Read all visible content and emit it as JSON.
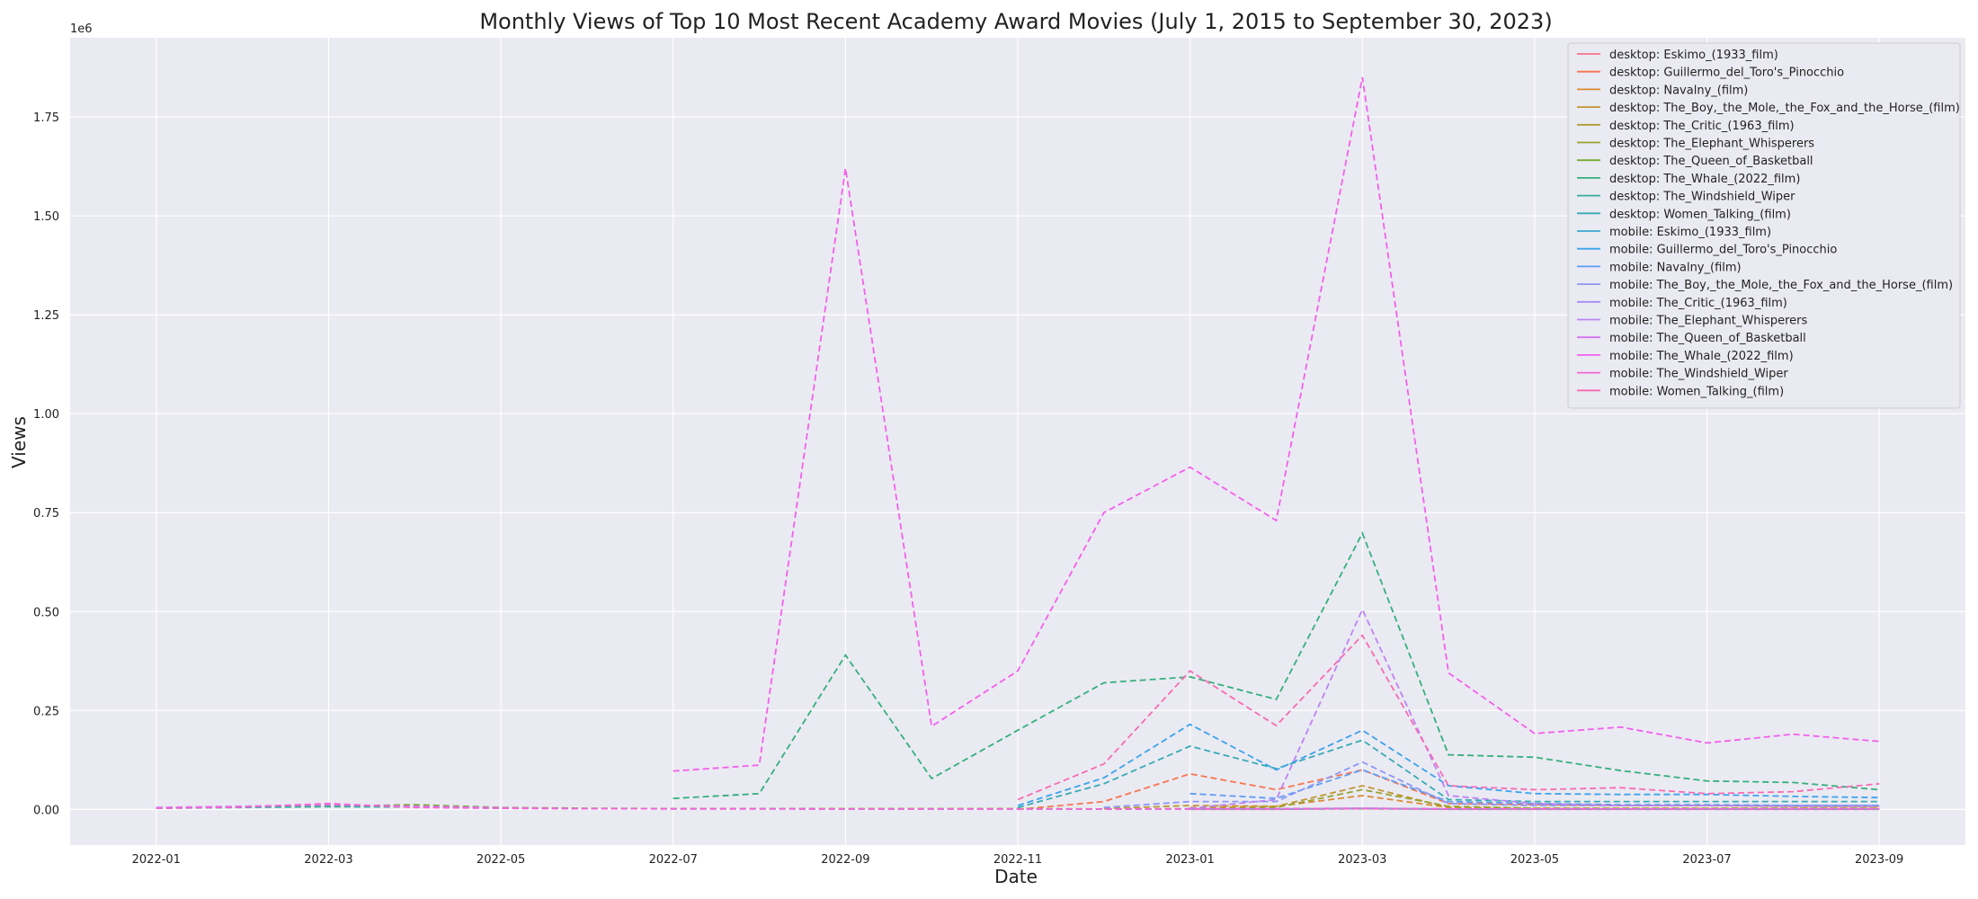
{
  "chart_data": {
    "type": "line",
    "title": "Monthly Views of Top 10 Most Recent Academy Award Movies (July 1, 2015 to September 30, 2023)",
    "xlabel": "Date",
    "ylabel": "Views",
    "y_offset_label": "1e6",
    "ylim": [
      -90000,
      1950000
    ],
    "xlim": [
      "2021-12",
      "2023-10"
    ],
    "x_ticks": [
      "2022-01",
      "2022-03",
      "2022-05",
      "2022-07",
      "2022-09",
      "2022-11",
      "2023-01",
      "2023-03",
      "2023-05",
      "2023-07",
      "2023-09"
    ],
    "y_ticks": [
      "0.00",
      "0.25",
      "0.50",
      "0.75",
      "1.00",
      "1.25",
      "1.50",
      "1.75"
    ],
    "grid": true,
    "legend_position": "top-right",
    "x": [
      "2022-01",
      "2022-02",
      "2022-03",
      "2022-04",
      "2022-05",
      "2022-06",
      "2022-07",
      "2022-08",
      "2022-09",
      "2022-10",
      "2022-11",
      "2022-12",
      "2023-01",
      "2023-02",
      "2023-03",
      "2023-04",
      "2023-05",
      "2023-06",
      "2023-07",
      "2023-08",
      "2023-09"
    ],
    "series": [
      {
        "name": "desktop: Eskimo_(1933_film)",
        "color": "#f77189",
        "values": [
          null,
          null,
          null,
          null,
          null,
          null,
          null,
          null,
          null,
          null,
          null,
          null,
          null,
          null,
          null,
          null,
          null,
          null,
          null,
          null,
          null
        ]
      },
      {
        "name": "desktop: Guillermo_del_Toro's_Pinocchio",
        "color": "#f7754f",
        "values": [
          null,
          null,
          null,
          null,
          null,
          null,
          null,
          null,
          null,
          null,
          0,
          20000,
          90000,
          50000,
          100000,
          15000,
          12000,
          10000,
          10000,
          8000,
          8000
        ]
      },
      {
        "name": "desktop: Navalny_(film)",
        "color": "#dc8932",
        "values": [
          null,
          null,
          null,
          null,
          null,
          null,
          null,
          null,
          null,
          null,
          null,
          null,
          5000,
          8000,
          35000,
          5000,
          3000,
          3000,
          3000,
          3000,
          3000
        ]
      },
      {
        "name": "desktop: The_Boy,_the_Mole,_the_Fox_and_the_Horse_(film)",
        "color": "#c39532",
        "values": [
          null,
          null,
          null,
          null,
          null,
          null,
          null,
          null,
          null,
          null,
          null,
          2000,
          10000,
          8000,
          60000,
          5000,
          3000,
          2000,
          2000,
          2000,
          2000
        ]
      },
      {
        "name": "desktop: The_Critic_(1963_film)",
        "color": "#ae9d31",
        "values": [
          null,
          null,
          null,
          null,
          null,
          null,
          null,
          null,
          null,
          null,
          null,
          null,
          500,
          500,
          1500,
          500,
          500,
          500,
          500,
          500,
          500
        ]
      },
      {
        "name": "desktop: The_Elephant_Whisperers",
        "color": "#97a431",
        "values": [
          null,
          null,
          null,
          null,
          null,
          null,
          null,
          null,
          null,
          null,
          null,
          null,
          1000,
          5000,
          50000,
          8000,
          3000,
          3000,
          3000,
          3000,
          3000
        ]
      },
      {
        "name": "desktop: The_Queen_of_Basketball",
        "color": "#77ab31",
        "values": [
          4000,
          6000,
          8000,
          12000,
          5000,
          3000,
          2000,
          2000,
          2000,
          2000,
          2000,
          1000,
          1000,
          1000,
          2000,
          1000,
          1000,
          1000,
          1000,
          1000,
          1000
        ]
      },
      {
        "name": "desktop: The_Whale_(2022_film)",
        "color": "#33b07a",
        "values": [
          null,
          null,
          null,
          null,
          null,
          null,
          28000,
          40000,
          390000,
          78000,
          200000,
          320000,
          335000,
          278000,
          698000,
          138000,
          132000,
          98000,
          72000,
          68000,
          50000
        ]
      },
      {
        "name": "desktop: The_Windshield_Wiper",
        "color": "#35ad9c",
        "values": [
          3000,
          5000,
          7000,
          6000,
          3000,
          2000,
          1500,
          1500,
          1000,
          1000,
          1000,
          1000,
          1500,
          1500,
          3000,
          1000,
          1000,
          1000,
          1000,
          1000,
          1000
        ]
      },
      {
        "name": "desktop: Women_Talking_(film)",
        "color": "#37abb4",
        "values": [
          null,
          null,
          null,
          null,
          null,
          null,
          null,
          null,
          null,
          null,
          5000,
          65000,
          160000,
          103000,
          175000,
          25000,
          20000,
          20000,
          20000,
          20000,
          20000
        ]
      },
      {
        "name": "mobile: Eskimo_(1933_film)",
        "color": "#39a7d0",
        "values": [
          null,
          null,
          null,
          null,
          null,
          null,
          null,
          null,
          null,
          null,
          null,
          null,
          null,
          null,
          null,
          null,
          null,
          null,
          null,
          null,
          null
        ]
      },
      {
        "name": "mobile: Guillermo_del_Toro's_Pinocchio",
        "color": "#3ba3ec",
        "values": [
          null,
          null,
          null,
          null,
          null,
          null,
          null,
          null,
          null,
          null,
          10000,
          80000,
          215000,
          100000,
          200000,
          60000,
          40000,
          38000,
          38000,
          33000,
          30000
        ]
      },
      {
        "name": "mobile: Navalny_(film)",
        "color": "#5d9ef5",
        "values": [
          null,
          null,
          null,
          null,
          null,
          null,
          null,
          null,
          null,
          null,
          null,
          null,
          40000,
          28000,
          100000,
          20000,
          15000,
          12000,
          12000,
          10000,
          10000
        ]
      },
      {
        "name": "mobile: The_Boy,_the_Mole,_the_Fox_and_the_Horse_(film)",
        "color": "#8d96f4",
        "values": [
          null,
          null,
          null,
          null,
          null,
          null,
          null,
          null,
          null,
          null,
          null,
          5000,
          20000,
          20000,
          120000,
          15000,
          10000,
          10000,
          10000,
          10000,
          10000
        ]
      },
      {
        "name": "mobile: The_Critic_(1963_film)",
        "color": "#a48cf4",
        "values": [
          null,
          null,
          null,
          null,
          null,
          null,
          null,
          null,
          null,
          null,
          null,
          null,
          1000,
          1000,
          3000,
          1000,
          1000,
          1000,
          1000,
          1000,
          1000
        ]
      },
      {
        "name": "mobile: The_Elephant_Whisperers",
        "color": "#bb83f4",
        "values": [
          null,
          null,
          null,
          null,
          null,
          null,
          null,
          null,
          null,
          null,
          null,
          null,
          3000,
          25000,
          505000,
          35000,
          15000,
          10000,
          10000,
          8000,
          8000
        ]
      },
      {
        "name": "mobile: The_Queen_of_Basketball",
        "color": "#d673f4",
        "values": [
          5000,
          8000,
          12000,
          8000,
          4000,
          2000,
          1500,
          1500,
          1000,
          1000,
          1000,
          1000,
          1000,
          1000,
          2000,
          1000,
          1000,
          1000,
          1000,
          1000,
          1000
        ]
      },
      {
        "name": "mobile: The_Whale_(2022_film)",
        "color": "#f35fec",
        "values": [
          null,
          null,
          null,
          null,
          null,
          null,
          97000,
          112000,
          1620000,
          210000,
          350000,
          750000,
          865000,
          730000,
          1850000,
          345000,
          192000,
          208000,
          168000,
          190000,
          172000
        ]
      },
      {
        "name": "mobile: The_Windshield_Wiper",
        "color": "#f564d4",
        "values": [
          3000,
          6000,
          15000,
          5000,
          3000,
          2000,
          1500,
          1500,
          1000,
          1000,
          1000,
          1000,
          1500,
          1500,
          3000,
          1000,
          1000,
          1000,
          1000,
          1000,
          1000
        ]
      },
      {
        "name": "mobile: Women_Talking_(film)",
        "color": "#f66bb4",
        "values": [
          null,
          null,
          null,
          null,
          null,
          null,
          null,
          null,
          null,
          null,
          25000,
          115000,
          350000,
          212000,
          440000,
          60000,
          50000,
          55000,
          40000,
          45000,
          65000
        ]
      }
    ]
  }
}
